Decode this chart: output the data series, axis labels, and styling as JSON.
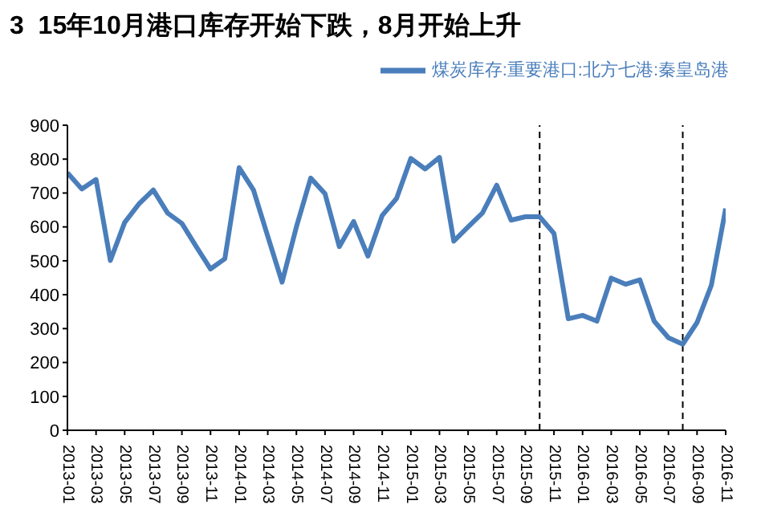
{
  "chart_data": {
    "type": "line",
    "title": "3  15年10月港口库存开始下跌，8月开始上升",
    "x": [
      "2013-01",
      "2013-02",
      "2013-03",
      "2013-04",
      "2013-05",
      "2013-06",
      "2013-07",
      "2013-08",
      "2013-09",
      "2013-10",
      "2013-11",
      "2013-12",
      "2014-01",
      "2014-02",
      "2014-03",
      "2014-04",
      "2014-05",
      "2014-06",
      "2014-07",
      "2014-08",
      "2014-09",
      "2014-10",
      "2014-11",
      "2014-12",
      "2015-01",
      "2015-02",
      "2015-03",
      "2015-04",
      "2015-05",
      "2015-06",
      "2015-07",
      "2015-08",
      "2015-09",
      "2015-10",
      "2015-11",
      "2015-12",
      "2016-01",
      "2016-02",
      "2016-03",
      "2016-04",
      "2016-05",
      "2016-06",
      "2016-07",
      "2016-08",
      "2016-09",
      "2016-10",
      "2016-11"
    ],
    "series": [
      {
        "name": "煤炭库存:重要港口:北方七港:秦皇岛港",
        "color": "#4a7ebb",
        "values": [
          760,
          712,
          740,
          501,
          613,
          668,
          709,
          641,
          610,
          542,
          476,
          506,
          775,
          709,
          572,
          437,
          600,
          744,
          698,
          542,
          616,
          514,
          634,
          684,
          802,
          771,
          805,
          558,
          600,
          641,
          723,
          620,
          630,
          630,
          581,
          329,
          339,
          322,
          449,
          431,
          444,
          322,
          273,
          254,
          318,
          428,
          654
        ]
      }
    ],
    "xlim": [
      "2013-01",
      "2016-11"
    ],
    "xticks": [
      "2013-01",
      "2013-03",
      "2013-05",
      "2013-07",
      "2013-09",
      "2013-11",
      "2014-01",
      "2014-03",
      "2014-05",
      "2014-07",
      "2014-09",
      "2014-11",
      "2015-01",
      "2015-03",
      "2015-05",
      "2015-07",
      "2015-09",
      "2015-11",
      "2016-01",
      "2016-03",
      "2016-05",
      "2016-07",
      "2016-09",
      "2016-11"
    ],
    "ylim": [
      0,
      900
    ],
    "yticks": [
      0,
      100,
      200,
      300,
      400,
      500,
      600,
      700,
      800,
      900
    ],
    "ref_lines": [
      {
        "axis": "x",
        "value": "2015-10",
        "color": "#000000",
        "line_style": "dashed"
      },
      {
        "axis": "x",
        "value": "2016-08",
        "color": "#000000",
        "line_style": "dashed"
      }
    ],
    "grid": false,
    "legend": "top right",
    "marker": "none",
    "line_style": "solid"
  }
}
